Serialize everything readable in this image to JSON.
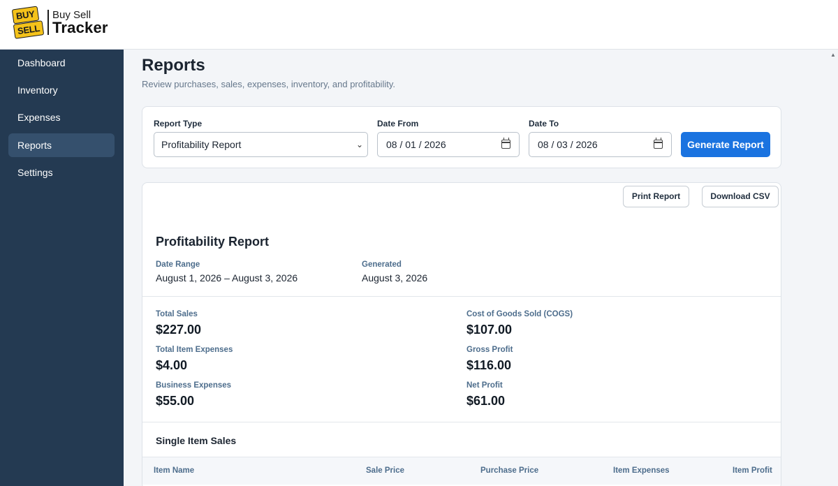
{
  "logo": {
    "tag_buy": "BUY",
    "tag_sell": "SELL",
    "line1": "Buy Sell",
    "line2": "Tracker"
  },
  "sidebar": {
    "items": [
      {
        "label": "Dashboard"
      },
      {
        "label": "Inventory"
      },
      {
        "label": "Expenses"
      },
      {
        "label": "Reports",
        "active": true
      },
      {
        "label": "Settings"
      }
    ]
  },
  "page": {
    "title": "Reports",
    "subtitle": "Review purchases, sales, expenses, inventory, and profitability."
  },
  "filters": {
    "report_type_label": "Report Type",
    "report_type_value": "Profitability Report",
    "date_from_label": "Date From",
    "date_from_value": "08 / 01 / 2026",
    "date_to_label": "Date To",
    "date_to_value": "08 / 03 / 2026",
    "generate_label": "Generate Report"
  },
  "report": {
    "print_label": "Print Report",
    "csv_label": "Download CSV",
    "title": "Profitability Report",
    "date_range_label": "Date Range",
    "date_range_value": "August 1, 2026 – August 3, 2026",
    "generated_label": "Generated",
    "generated_value": "August 3, 2026",
    "stats": {
      "total_sales": {
        "label": "Total Sales",
        "value": "$227.00"
      },
      "cogs": {
        "label": "Cost of Goods Sold (COGS)",
        "value": "$107.00"
      },
      "item_expenses": {
        "label": "Total Item Expenses",
        "value": "$4.00"
      },
      "gross_profit": {
        "label": "Gross Profit",
        "value": "$116.00"
      },
      "business_expenses": {
        "label": "Business Expenses",
        "value": "$55.00"
      },
      "net_profit": {
        "label": "Net Profit",
        "value": "$61.00"
      }
    },
    "single_item_sales": {
      "title": "Single Item Sales",
      "columns": [
        "Item Name",
        "Sale Price",
        "Purchase Price",
        "Item Expenses",
        "Item Profit"
      ]
    }
  },
  "colors": {
    "sidebar_bg": "#243a52",
    "sidebar_active": "#35506d",
    "primary": "#1a73e0",
    "logo_yellow": "#f4c21a"
  }
}
